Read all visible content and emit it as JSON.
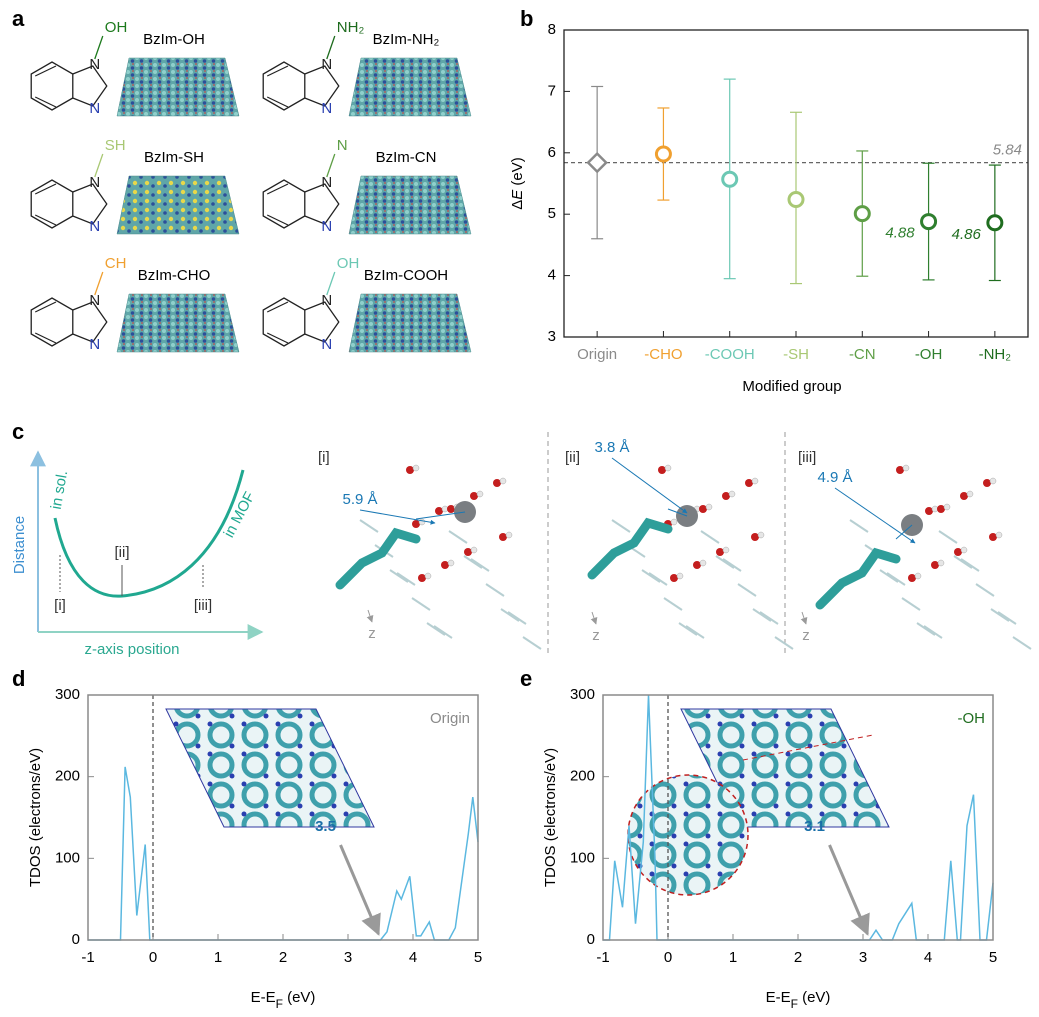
{
  "panel_a": {
    "label": "a",
    "molecules": [
      {
        "name": "BzIm-OH",
        "group": "OH",
        "group_color": "#1d7a1d"
      },
      {
        "name": "BzIm-NH₂",
        "group": "NH₂",
        "group_color": "#1d6b1d"
      },
      {
        "name": "BzIm-SH",
        "group": "SH",
        "group_color": "#a9c874"
      },
      {
        "name": "BzIm-CN",
        "group": "N",
        "group_color": "#5e9e46"
      },
      {
        "name": "BzIm-CHO",
        "group": "CH",
        "group_color": "#f0a030"
      },
      {
        "name": "BzIm-COOH",
        "group": "OH",
        "group_color": "#6cc8b4"
      }
    ],
    "ring_atom": "N"
  },
  "panel_c": {
    "label": "c",
    "ylabel": "Distance",
    "xlabel": "z-axis position",
    "curve_labels": [
      "in sol.",
      "in MOF"
    ],
    "positions": [
      "[i]",
      "[ii]",
      "[iii]"
    ],
    "snapshots": [
      {
        "tag": "[i]",
        "distance": "5.9 Å",
        "axis": "z"
      },
      {
        "tag": "[ii]",
        "distance": "3.8 Å",
        "axis": "z"
      },
      {
        "tag": "[iii]",
        "distance": "4.9 Å",
        "axis": "z"
      }
    ]
  },
  "chart_data": [
    {
      "label": "b",
      "type": "errorbar",
      "ylabel": [
        "Δ",
        "E",
        " (eV)"
      ],
      "xlabel": "Modified group",
      "categories": [
        "Origin",
        "-CHO",
        "-COOH",
        "-SH",
        "-CN",
        "-OH",
        "-NH₂"
      ],
      "colors": [
        "#8a8a8a",
        "#f0a030",
        "#6cc8b4",
        "#a9c874",
        "#5e9e46",
        "#2f7f2f",
        "#1f6d1f"
      ],
      "markers": [
        "diamond",
        "circle",
        "circle",
        "circle",
        "circle",
        "circle",
        "circle"
      ],
      "values": [
        5.84,
        5.98,
        5.57,
        5.24,
        5.01,
        4.88,
        4.86
      ],
      "value_labels": [
        null,
        null,
        null,
        null,
        null,
        "4.88",
        "4.86"
      ],
      "lower": [
        4.6,
        5.23,
        3.95,
        3.87,
        3.99,
        3.93,
        3.92
      ],
      "upper": [
        7.08,
        6.73,
        7.2,
        6.66,
        6.03,
        5.83,
        5.8
      ],
      "ylim": [
        3,
        8
      ],
      "yticks": [
        3,
        4,
        5,
        6,
        7,
        8
      ],
      "reference_line": 5.84
    },
    {
      "label": "d",
      "type": "line",
      "x": [
        -1,
        -0.5,
        -0.43,
        -0.35,
        -0.25,
        -0.12,
        -0.05,
        3.5,
        3.6,
        3.75,
        3.82,
        3.95,
        4.05,
        4.12,
        4.25,
        4.33,
        4.55,
        4.65,
        4.85,
        4.92,
        5
      ],
      "values": [
        0,
        0,
        212,
        175,
        30,
        117,
        0,
        0,
        10,
        60,
        50,
        78,
        5,
        5,
        22,
        0,
        0,
        15,
        130,
        175,
        120
      ],
      "color": "#5bb8e0",
      "xlim": [
        -1,
        5
      ],
      "ylim": [
        0,
        300
      ],
      "xticks": [
        -1,
        0,
        1,
        2,
        3,
        4,
        5
      ],
      "yticks": [
        0,
        100,
        200,
        300
      ],
      "xlabel": [
        "E-E",
        "F",
        " (eV)"
      ],
      "ylabel": "TDOS (electrons/eV)",
      "reference_x": 0,
      "annotation_x": 3.5,
      "inset_label": "Origin",
      "inset_label_color": "#8a8a8a"
    },
    {
      "label": "e",
      "type": "line",
      "x": [
        -1,
        -0.9,
        -0.82,
        -0.7,
        -0.6,
        -0.5,
        -0.38,
        -0.3,
        -0.2,
        -0.17,
        -0.1,
        3.1,
        3.2,
        3.3,
        3.45,
        3.55,
        3.75,
        3.82,
        4.25,
        4.35,
        4.45,
        4.5,
        4.6,
        4.7,
        4.8,
        4.9,
        5
      ],
      "values": [
        0,
        0,
        97,
        40,
        140,
        20,
        120,
        300,
        100,
        0,
        0,
        0,
        12,
        0,
        0,
        20,
        45,
        0,
        0,
        97,
        0,
        0,
        140,
        178,
        0,
        0,
        70
      ],
      "color": "#5bb8e0",
      "xlim": [
        -1,
        5
      ],
      "ylim": [
        0,
        300
      ],
      "xticks": [
        -1,
        0,
        1,
        2,
        3,
        4,
        5
      ],
      "yticks": [
        0,
        100,
        200,
        300
      ],
      "xlabel": [
        "E-E",
        "F",
        " (eV)"
      ],
      "ylabel": "TDOS (electrons/eV)",
      "reference_x": 0,
      "annotation_x": 3.1,
      "inset_label": "-OH",
      "inset_label_color": "#1f6d1f"
    }
  ]
}
